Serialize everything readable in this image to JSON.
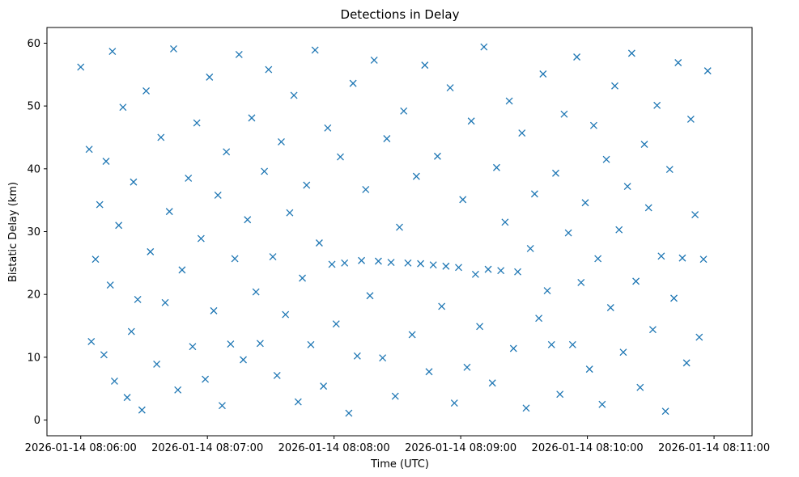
{
  "chart_data": {
    "type": "scatter",
    "title": "Detections in Delay",
    "xlabel": "Time (UTC)",
    "ylabel": "Bistatic Delay (km)",
    "marker": "x",
    "color": "#1f77b4",
    "grid": false,
    "x_axis_type": "time",
    "xlim": [
      "2026-01-14 08:05:44",
      "2026-01-14 08:11:18"
    ],
    "ylim": [
      -2.5,
      62.5
    ],
    "x_ticks": [
      "2026-01-14 08:06:00",
      "2026-01-14 08:07:00",
      "2026-01-14 08:08:00",
      "2026-01-14 08:09:00",
      "2026-01-14 08:10:00",
      "2026-01-14 08:11:00"
    ],
    "y_ticks": [
      0,
      10,
      20,
      30,
      40,
      50,
      60
    ],
    "series": [
      {
        "points": [
          [
            "08:06:00",
            56.2
          ],
          [
            "08:06:04",
            43.1
          ],
          [
            "08:06:05",
            12.5
          ],
          [
            "08:06:07",
            25.6
          ],
          [
            "08:06:09",
            34.3
          ],
          [
            "08:06:11",
            10.4
          ],
          [
            "08:06:12",
            41.2
          ],
          [
            "08:06:14",
            21.5
          ],
          [
            "08:06:15",
            58.7
          ],
          [
            "08:06:16",
            6.2
          ],
          [
            "08:06:18",
            31.0
          ],
          [
            "08:06:20",
            49.8
          ],
          [
            "08:06:22",
            3.6
          ],
          [
            "08:06:24",
            14.1
          ],
          [
            "08:06:25",
            37.9
          ],
          [
            "08:06:27",
            19.2
          ],
          [
            "08:06:29",
            1.6
          ],
          [
            "08:06:31",
            52.4
          ],
          [
            "08:06:33",
            26.8
          ],
          [
            "08:06:36",
            8.9
          ],
          [
            "08:06:38",
            45.0
          ],
          [
            "08:06:40",
            18.7
          ],
          [
            "08:06:42",
            33.2
          ],
          [
            "08:06:44",
            59.1
          ],
          [
            "08:06:46",
            4.8
          ],
          [
            "08:06:48",
            23.9
          ],
          [
            "08:06:51",
            38.5
          ],
          [
            "08:06:53",
            11.7
          ],
          [
            "08:06:55",
            47.3
          ],
          [
            "08:06:57",
            28.9
          ],
          [
            "08:06:59",
            6.5
          ],
          [
            "08:07:01",
            54.6
          ],
          [
            "08:07:03",
            17.4
          ],
          [
            "08:07:05",
            35.8
          ],
          [
            "08:07:07",
            2.3
          ],
          [
            "08:07:09",
            42.7
          ],
          [
            "08:07:11",
            12.1
          ],
          [
            "08:07:13",
            25.7
          ],
          [
            "08:07:15",
            58.2
          ],
          [
            "08:07:17",
            9.6
          ],
          [
            "08:07:19",
            31.9
          ],
          [
            "08:07:21",
            48.1
          ],
          [
            "08:07:23",
            20.4
          ],
          [
            "08:07:25",
            12.2
          ],
          [
            "08:07:27",
            39.6
          ],
          [
            "08:07:29",
            55.8
          ],
          [
            "08:07:31",
            26.0
          ],
          [
            "08:07:33",
            7.1
          ],
          [
            "08:07:35",
            44.3
          ],
          [
            "08:07:37",
            16.8
          ],
          [
            "08:07:39",
            33.0
          ],
          [
            "08:07:41",
            51.7
          ],
          [
            "08:07:43",
            2.9
          ],
          [
            "08:07:45",
            22.6
          ],
          [
            "08:07:47",
            37.4
          ],
          [
            "08:07:49",
            12.0
          ],
          [
            "08:07:51",
            58.9
          ],
          [
            "08:07:53",
            28.2
          ],
          [
            "08:07:55",
            5.4
          ],
          [
            "08:07:57",
            46.5
          ],
          [
            "08:07:59",
            24.8
          ],
          [
            "08:08:01",
            15.3
          ],
          [
            "08:08:03",
            41.9
          ],
          [
            "08:08:05",
            25.0
          ],
          [
            "08:08:07",
            1.1
          ],
          [
            "08:08:09",
            53.6
          ],
          [
            "08:08:11",
            10.2
          ],
          [
            "08:08:13",
            25.4
          ],
          [
            "08:08:15",
            36.7
          ],
          [
            "08:08:17",
            19.8
          ],
          [
            "08:08:19",
            57.3
          ],
          [
            "08:08:21",
            25.3
          ],
          [
            "08:08:23",
            9.9
          ],
          [
            "08:08:25",
            44.8
          ],
          [
            "08:08:27",
            25.1
          ],
          [
            "08:08:29",
            3.8
          ],
          [
            "08:08:31",
            30.7
          ],
          [
            "08:08:33",
            49.2
          ],
          [
            "08:08:35",
            25.0
          ],
          [
            "08:08:37",
            13.6
          ],
          [
            "08:08:39",
            38.8
          ],
          [
            "08:08:41",
            24.9
          ],
          [
            "08:08:43",
            56.5
          ],
          [
            "08:08:45",
            7.7
          ],
          [
            "08:08:47",
            24.7
          ],
          [
            "08:08:49",
            42.0
          ],
          [
            "08:08:51",
            18.1
          ],
          [
            "08:08:53",
            24.5
          ],
          [
            "08:08:55",
            52.9
          ],
          [
            "08:08:57",
            2.7
          ],
          [
            "08:08:59",
            24.3
          ],
          [
            "08:09:01",
            35.1
          ],
          [
            "08:09:03",
            8.4
          ],
          [
            "08:09:05",
            47.6
          ],
          [
            "08:09:07",
            23.2
          ],
          [
            "08:09:09",
            14.9
          ],
          [
            "08:09:11",
            59.4
          ],
          [
            "08:09:13",
            24.0
          ],
          [
            "08:09:15",
            5.9
          ],
          [
            "08:09:17",
            40.2
          ],
          [
            "08:09:19",
            23.8
          ],
          [
            "08:09:21",
            31.5
          ],
          [
            "08:09:23",
            50.8
          ],
          [
            "08:09:25",
            11.4
          ],
          [
            "08:09:27",
            23.6
          ],
          [
            "08:09:29",
            45.7
          ],
          [
            "08:09:31",
            1.9
          ],
          [
            "08:09:33",
            27.3
          ],
          [
            "08:09:35",
            36.0
          ],
          [
            "08:09:37",
            16.2
          ],
          [
            "08:09:39",
            55.1
          ],
          [
            "08:09:41",
            20.6
          ],
          [
            "08:09:43",
            12.0
          ],
          [
            "08:09:45",
            39.3
          ],
          [
            "08:09:47",
            4.1
          ],
          [
            "08:09:49",
            48.7
          ],
          [
            "08:09:51",
            29.8
          ],
          [
            "08:09:53",
            12.0
          ],
          [
            "08:09:55",
            57.8
          ],
          [
            "08:09:57",
            21.9
          ],
          [
            "08:09:59",
            34.6
          ],
          [
            "08:10:01",
            8.1
          ],
          [
            "08:10:03",
            46.9
          ],
          [
            "08:10:05",
            25.7
          ],
          [
            "08:10:07",
            2.5
          ],
          [
            "08:10:09",
            41.5
          ],
          [
            "08:10:11",
            17.9
          ],
          [
            "08:10:13",
            53.2
          ],
          [
            "08:10:15",
            30.3
          ],
          [
            "08:10:17",
            10.8
          ],
          [
            "08:10:19",
            37.2
          ],
          [
            "08:10:21",
            58.4
          ],
          [
            "08:10:23",
            22.1
          ],
          [
            "08:10:25",
            5.2
          ],
          [
            "08:10:27",
            43.9
          ],
          [
            "08:10:29",
            33.8
          ],
          [
            "08:10:31",
            14.4
          ],
          [
            "08:10:33",
            50.1
          ],
          [
            "08:10:35",
            26.1
          ],
          [
            "08:10:37",
            1.4
          ],
          [
            "08:10:39",
            39.9
          ],
          [
            "08:10:41",
            19.4
          ],
          [
            "08:10:43",
            56.9
          ],
          [
            "08:10:45",
            25.8
          ],
          [
            "08:10:47",
            9.1
          ],
          [
            "08:10:49",
            47.9
          ],
          [
            "08:10:51",
            32.7
          ],
          [
            "08:10:53",
            13.2
          ],
          [
            "08:10:55",
            25.6
          ],
          [
            "08:10:57",
            55.6
          ]
        ]
      }
    ]
  }
}
